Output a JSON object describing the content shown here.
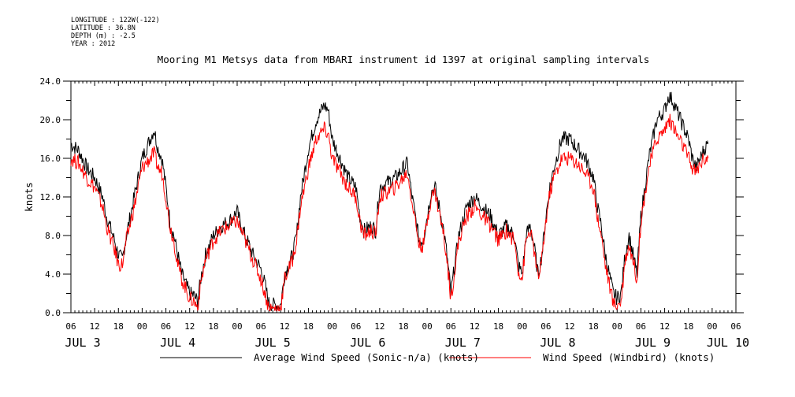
{
  "meta": {
    "longitude": "LONGITUDE : 122W(-122)",
    "latitude": "LATITUDE : 36.8N",
    "depth": "DEPTH (m) : -2.5",
    "year": "YEAR : 2012"
  },
  "chart_data": {
    "type": "line",
    "title": "Mooring M1 Metsys data from MBARI instrument id 1397 at original sampling intervals",
    "ylabel": "knots",
    "xlabel": "",
    "ylim": [
      0,
      24
    ],
    "yticks": [
      "0.0",
      "4.0",
      "8.0",
      "12.0",
      "16.0",
      "20.0",
      "24.0"
    ],
    "xlim": [
      0,
      168
    ],
    "x_units": "hours after 2012-07-03 06:00",
    "hour_ticks": [
      "06",
      "12",
      "18",
      "00",
      "06",
      "12",
      "18",
      "00",
      "06",
      "12",
      "18",
      "00",
      "06",
      "12",
      "18",
      "00",
      "06",
      "12",
      "18",
      "00",
      "06",
      "12",
      "18",
      "00",
      "06",
      "12",
      "18",
      "00",
      "06"
    ],
    "day_labels": [
      "JUL 3",
      "JUL 4",
      "JUL 5",
      "JUL 6",
      "JUL 7",
      "JUL 8",
      "JUL 9",
      "JUL 10"
    ],
    "day_label_hours": [
      3,
      27,
      51,
      75,
      99,
      123,
      147,
      166
    ],
    "legend_placement": "bottom",
    "series": [
      {
        "name": "Average Wind Speed (Sonic-n/a) (knots)",
        "color": "#000000",
        "points": [
          [
            0,
            17.5
          ],
          [
            2,
            16.8
          ],
          [
            4,
            15
          ],
          [
            6,
            14
          ],
          [
            8,
            12
          ],
          [
            9,
            10
          ],
          [
            11,
            7.5
          ],
          [
            12,
            6
          ],
          [
            13,
            5.5
          ],
          [
            14,
            8
          ],
          [
            16,
            12
          ],
          [
            18,
            16
          ],
          [
            20,
            18
          ],
          [
            21,
            19
          ],
          [
            22,
            17
          ],
          [
            23,
            16
          ],
          [
            24,
            13
          ],
          [
            25,
            9.5
          ],
          [
            26,
            8
          ],
          [
            27,
            6
          ],
          [
            28,
            4
          ],
          [
            29,
            3
          ],
          [
            30,
            2
          ],
          [
            31,
            1.8
          ],
          [
            32,
            1.2
          ],
          [
            33,
            4
          ],
          [
            34,
            6
          ],
          [
            36,
            8
          ],
          [
            38,
            9
          ],
          [
            40,
            9.5
          ],
          [
            42,
            10.5
          ],
          [
            43,
            9
          ],
          [
            44,
            8
          ],
          [
            46,
            6
          ],
          [
            48,
            4.5
          ],
          [
            49,
            3
          ],
          [
            50,
            1
          ],
          [
            51,
            0.8
          ],
          [
            52,
            0.8
          ],
          [
            53,
            0.8
          ],
          [
            54,
            4
          ],
          [
            56,
            6
          ],
          [
            57,
            8
          ],
          [
            58,
            12
          ],
          [
            60,
            17
          ],
          [
            62,
            20
          ],
          [
            64,
            21.5
          ],
          [
            65,
            21
          ],
          [
            66,
            18
          ],
          [
            68,
            16
          ],
          [
            70,
            14
          ],
          [
            72,
            13
          ],
          [
            73,
            10
          ],
          [
            74,
            8.5
          ],
          [
            76,
            9
          ],
          [
            77,
            8.5
          ],
          [
            78,
            13
          ],
          [
            80,
            13.5
          ],
          [
            82,
            14
          ],
          [
            84,
            15
          ],
          [
            85,
            15.5
          ],
          [
            86,
            12.5
          ],
          [
            87,
            10
          ],
          [
            88,
            7.5
          ],
          [
            89,
            7.5
          ],
          [
            90,
            10
          ],
          [
            91,
            12.5
          ],
          [
            92,
            13
          ],
          [
            93,
            11
          ],
          [
            94,
            9
          ],
          [
            95,
            6
          ],
          [
            96,
            2
          ],
          [
            97,
            5
          ],
          [
            98,
            8
          ],
          [
            100,
            11
          ],
          [
            102,
            12
          ],
          [
            104,
            11
          ],
          [
            106,
            10
          ],
          [
            108,
            8
          ],
          [
            110,
            9
          ],
          [
            112,
            8
          ],
          [
            113,
            5
          ],
          [
            114,
            4
          ],
          [
            115,
            8
          ],
          [
            116,
            9
          ],
          [
            117,
            7
          ],
          [
            118,
            4
          ],
          [
            119,
            6
          ],
          [
            120,
            10
          ],
          [
            121,
            13
          ],
          [
            122,
            15
          ],
          [
            124,
            18
          ],
          [
            126,
            18
          ],
          [
            128,
            17
          ],
          [
            130,
            16
          ],
          [
            132,
            14
          ],
          [
            133,
            11
          ],
          [
            134,
            9
          ],
          [
            135,
            6
          ],
          [
            136,
            4
          ],
          [
            137,
            2
          ],
          [
            138,
            1.5
          ],
          [
            139,
            2
          ],
          [
            140,
            6
          ],
          [
            141,
            8
          ],
          [
            142,
            6
          ],
          [
            143,
            4
          ],
          [
            144,
            10
          ],
          [
            146,
            16
          ],
          [
            148,
            20
          ],
          [
            150,
            21
          ],
          [
            151,
            22.5
          ],
          [
            152,
            22
          ],
          [
            153,
            21
          ],
          [
            155,
            19
          ],
          [
            156,
            18
          ],
          [
            157,
            16
          ],
          [
            158,
            15
          ],
          [
            159,
            16
          ],
          [
            160,
            17
          ],
          [
            161,
            17.5
          ]
        ]
      },
      {
        "name": "Wind Speed (Windbird) (knots)",
        "color": "#ff0000",
        "points": [
          [
            0,
            16
          ],
          [
            2,
            15.5
          ],
          [
            4,
            14
          ],
          [
            6,
            13
          ],
          [
            8,
            11
          ],
          [
            9,
            9
          ],
          [
            11,
            6.5
          ],
          [
            12,
            5
          ],
          [
            13,
            5
          ],
          [
            14,
            7.5
          ],
          [
            16,
            11
          ],
          [
            18,
            15
          ],
          [
            20,
            16
          ],
          [
            21,
            16.5
          ],
          [
            22,
            15
          ],
          [
            23,
            14.5
          ],
          [
            24,
            12
          ],
          [
            25,
            9
          ],
          [
            26,
            7.5
          ],
          [
            27,
            5
          ],
          [
            28,
            3.5
          ],
          [
            29,
            2.5
          ],
          [
            30,
            1.5
          ],
          [
            31,
            1.2
          ],
          [
            32,
            0.6
          ],
          [
            33,
            3.5
          ],
          [
            34,
            5.5
          ],
          [
            36,
            7.5
          ],
          [
            38,
            8.5
          ],
          [
            40,
            9
          ],
          [
            42,
            9.5
          ],
          [
            43,
            8.5
          ],
          [
            44,
            7.5
          ],
          [
            46,
            5.5
          ],
          [
            48,
            3.5
          ],
          [
            49,
            2
          ],
          [
            50,
            0.5
          ],
          [
            51,
            0.4
          ],
          [
            52,
            0.4
          ],
          [
            53,
            0.5
          ],
          [
            54,
            3.5
          ],
          [
            56,
            5.5
          ],
          [
            57,
            7.5
          ],
          [
            58,
            11
          ],
          [
            60,
            15
          ],
          [
            62,
            18
          ],
          [
            64,
            19
          ],
          [
            65,
            18.5
          ],
          [
            66,
            16
          ],
          [
            68,
            14.5
          ],
          [
            70,
            13
          ],
          [
            72,
            12
          ],
          [
            73,
            9.5
          ],
          [
            74,
            8
          ],
          [
            76,
            8.5
          ],
          [
            77,
            8
          ],
          [
            78,
            12
          ],
          [
            80,
            12.5
          ],
          [
            82,
            13
          ],
          [
            84,
            14
          ],
          [
            85,
            14.5
          ],
          [
            86,
            12
          ],
          [
            87,
            9.5
          ],
          [
            88,
            7
          ],
          [
            89,
            7
          ],
          [
            90,
            9.5
          ],
          [
            91,
            12
          ],
          [
            92,
            12.5
          ],
          [
            93,
            10.5
          ],
          [
            94,
            8.5
          ],
          [
            95,
            5.5
          ],
          [
            96,
            1.5
          ],
          [
            97,
            4.5
          ],
          [
            98,
            7.5
          ],
          [
            100,
            10
          ],
          [
            102,
            11
          ],
          [
            104,
            10
          ],
          [
            106,
            9
          ],
          [
            108,
            7.5
          ],
          [
            110,
            8.5
          ],
          [
            112,
            7.5
          ],
          [
            113,
            4.5
          ],
          [
            114,
            3.5
          ],
          [
            115,
            7.5
          ],
          [
            116,
            8.5
          ],
          [
            117,
            6.5
          ],
          [
            118,
            3.5
          ],
          [
            119,
            5.5
          ],
          [
            120,
            9.5
          ],
          [
            121,
            12.5
          ],
          [
            122,
            14
          ],
          [
            124,
            16
          ],
          [
            126,
            16
          ],
          [
            128,
            15.5
          ],
          [
            130,
            14.5
          ],
          [
            132,
            13
          ],
          [
            133,
            10
          ],
          [
            134,
            8
          ],
          [
            135,
            5
          ],
          [
            136,
            3
          ],
          [
            137,
            1
          ],
          [
            138,
            0.8
          ],
          [
            139,
            1.2
          ],
          [
            140,
            5.5
          ],
          [
            141,
            7
          ],
          [
            142,
            5.5
          ],
          [
            143,
            3.5
          ],
          [
            144,
            9.5
          ],
          [
            146,
            15
          ],
          [
            148,
            18
          ],
          [
            150,
            19
          ],
          [
            151,
            20
          ],
          [
            152,
            19.5
          ],
          [
            153,
            18.5
          ],
          [
            155,
            17
          ],
          [
            156,
            16
          ],
          [
            157,
            15
          ],
          [
            158,
            14.5
          ],
          [
            159,
            15.5
          ],
          [
            160,
            16
          ],
          [
            161,
            16
          ]
        ]
      }
    ]
  }
}
